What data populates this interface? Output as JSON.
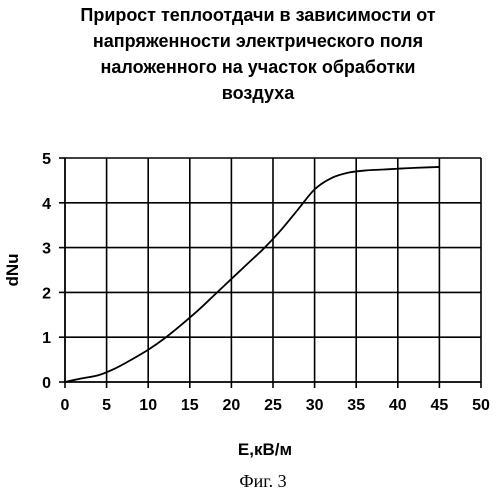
{
  "chart_data": {
    "type": "line",
    "title_lines": [
      "Прирост теплоотдачи в зависимости от",
      "напряженности электрического поля",
      "наложенного на участок обработки",
      "воздуха"
    ],
    "xlabel": "E,кВ/м",
    "ylabel": "dNu",
    "xlim": [
      0,
      50
    ],
    "ylim": [
      0,
      5
    ],
    "x_ticks": [
      0,
      5,
      10,
      15,
      20,
      25,
      30,
      35,
      40,
      45,
      50
    ],
    "y_ticks": [
      0,
      1,
      2,
      3,
      4,
      5
    ],
    "grid": "vertical and horizontal",
    "series": [
      {
        "color": "#000000",
        "x": [
          0,
          2,
          4,
          6,
          8,
          10,
          12,
          14,
          16,
          18,
          20,
          22,
          24,
          26,
          28,
          30,
          32,
          34,
          36,
          38,
          40,
          42,
          45
        ],
        "y": [
          0,
          0.08,
          0.15,
          0.3,
          0.5,
          0.72,
          0.98,
          1.28,
          1.6,
          1.95,
          2.3,
          2.65,
          3.0,
          3.4,
          3.85,
          4.3,
          4.55,
          4.67,
          4.72,
          4.74,
          4.76,
          4.78,
          4.8
        ]
      }
    ]
  },
  "caption": "Фиг. 3"
}
